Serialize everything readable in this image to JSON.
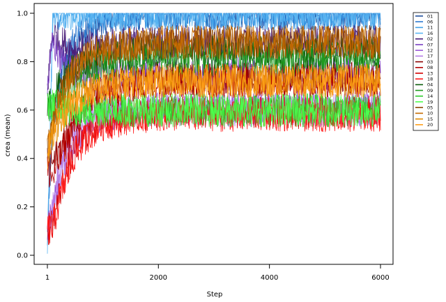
{
  "chart_data": {
    "type": "line",
    "title": "",
    "xlabel": "Step",
    "ylabel": "crea (mean)",
    "xlim": [
      1,
      6000
    ],
    "ylim": [
      0,
      1
    ],
    "x_ticks": [
      1,
      2000,
      4000,
      6000
    ],
    "y_ticks": [
      0.0,
      0.2,
      0.4,
      0.6,
      0.8,
      1.0
    ],
    "y_tick_labels": [
      "0.0",
      "0.2",
      "0.4",
      "0.6",
      "0.8",
      "1.0"
    ],
    "grid": false,
    "legend_position": "right",
    "sample_steps": [
      1,
      100,
      250,
      500,
      750,
      1000,
      1500,
      2000,
      2500,
      3000,
      4000,
      5000,
      6000
    ],
    "series": [
      {
        "name": "01",
        "color": "#1f4e9c",
        "values": [
          0.1,
          0.55,
          0.72,
          0.86,
          0.93,
          0.97,
          0.99,
          1.0,
          1.0,
          1.0,
          1.0,
          1.0,
          1.0
        ]
      },
      {
        "name": "06",
        "color": "#2a78d0",
        "values": [
          0.1,
          0.6,
          0.78,
          0.9,
          0.95,
          0.98,
          1.0,
          1.0,
          1.0,
          1.0,
          1.0,
          1.0,
          1.0
        ]
      },
      {
        "name": "11",
        "color": "#3fa0e8",
        "values": [
          0.0,
          1.0,
          1.0,
          1.0,
          1.0,
          1.0,
          1.0,
          1.0,
          1.0,
          1.0,
          1.0,
          1.0,
          1.0
        ]
      },
      {
        "name": "16",
        "color": "#5bb6f2",
        "values": [
          0.0,
          1.0,
          1.0,
          1.0,
          1.0,
          1.0,
          1.0,
          1.0,
          1.0,
          1.0,
          1.0,
          1.0,
          1.0
        ]
      },
      {
        "name": "02",
        "color": "#4b1f7a",
        "values": [
          0.7,
          0.92,
          0.88,
          0.85,
          0.86,
          0.87,
          0.88,
          0.88,
          0.88,
          0.88,
          0.88,
          0.88,
          0.88
        ]
      },
      {
        "name": "07",
        "color": "#7a3ec2",
        "values": [
          0.7,
          0.88,
          0.8,
          0.76,
          0.75,
          0.75,
          0.75,
          0.75,
          0.75,
          0.75,
          0.75,
          0.75,
          0.75
        ]
      },
      {
        "name": "12",
        "color": "#9b59d8",
        "values": [
          0.1,
          0.2,
          0.35,
          0.48,
          0.55,
          0.58,
          0.6,
          0.61,
          0.61,
          0.61,
          0.61,
          0.61,
          0.61
        ]
      },
      {
        "name": "17",
        "color": "#b57be6",
        "values": [
          0.1,
          0.22,
          0.38,
          0.5,
          0.56,
          0.59,
          0.6,
          0.6,
          0.6,
          0.6,
          0.6,
          0.6,
          0.6
        ]
      },
      {
        "name": "03",
        "color": "#8b0000",
        "values": [
          0.4,
          0.38,
          0.45,
          0.58,
          0.64,
          0.68,
          0.72,
          0.73,
          0.73,
          0.73,
          0.73,
          0.73,
          0.73
        ]
      },
      {
        "name": "08",
        "color": "#b30000",
        "values": [
          0.35,
          0.32,
          0.42,
          0.55,
          0.62,
          0.66,
          0.7,
          0.72,
          0.72,
          0.72,
          0.72,
          0.72,
          0.72
        ]
      },
      {
        "name": "13",
        "color": "#d40000",
        "values": [
          0.1,
          0.14,
          0.28,
          0.44,
          0.51,
          0.55,
          0.58,
          0.59,
          0.59,
          0.59,
          0.59,
          0.59,
          0.59
        ]
      },
      {
        "name": "18",
        "color": "#ff1a1a",
        "values": [
          0.1,
          0.12,
          0.26,
          0.42,
          0.5,
          0.54,
          0.57,
          0.58,
          0.58,
          0.58,
          0.58,
          0.58,
          0.58
        ]
      },
      {
        "name": "04",
        "color": "#0a5c0a",
        "values": [
          0.6,
          0.65,
          0.72,
          0.78,
          0.8,
          0.82,
          0.83,
          0.84,
          0.84,
          0.84,
          0.84,
          0.84,
          0.84
        ]
      },
      {
        "name": "09",
        "color": "#1f9a1f",
        "values": [
          0.6,
          0.62,
          0.66,
          0.72,
          0.76,
          0.78,
          0.8,
          0.81,
          0.81,
          0.81,
          0.81,
          0.81,
          0.81
        ]
      },
      {
        "name": "14",
        "color": "#2ecc2e",
        "values": [
          0.62,
          0.6,
          0.6,
          0.6,
          0.6,
          0.6,
          0.6,
          0.6,
          0.6,
          0.6,
          0.6,
          0.6,
          0.6
        ]
      },
      {
        "name": "19",
        "color": "#4cff4c",
        "values": [
          0.64,
          0.62,
          0.61,
          0.6,
          0.6,
          0.6,
          0.6,
          0.6,
          0.6,
          0.6,
          0.6,
          0.6,
          0.6
        ]
      },
      {
        "name": "05",
        "color": "#8b4500",
        "values": [
          0.45,
          0.55,
          0.68,
          0.78,
          0.83,
          0.85,
          0.87,
          0.88,
          0.88,
          0.88,
          0.88,
          0.88,
          0.88
        ]
      },
      {
        "name": "10",
        "color": "#c46a00",
        "values": [
          0.45,
          0.54,
          0.66,
          0.77,
          0.82,
          0.85,
          0.87,
          0.88,
          0.88,
          0.88,
          0.88,
          0.88,
          0.88
        ]
      },
      {
        "name": "15",
        "color": "#e08a00",
        "values": [
          0.42,
          0.5,
          0.58,
          0.65,
          0.68,
          0.7,
          0.72,
          0.72,
          0.72,
          0.72,
          0.72,
          0.72,
          0.72
        ]
      },
      {
        "name": "20",
        "color": "#ff9f1a",
        "values": [
          0.42,
          0.5,
          0.58,
          0.64,
          0.67,
          0.69,
          0.71,
          0.72,
          0.72,
          0.72,
          0.72,
          0.72,
          0.72
        ]
      }
    ]
  }
}
